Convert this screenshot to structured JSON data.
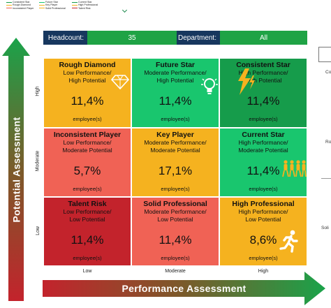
{
  "legend": [
    {
      "label": "Consistent Star",
      "color": "#169c4b"
    },
    {
      "label": "Rough Diamond",
      "color": "#f5b21f"
    },
    {
      "label": "Inconsistent Player",
      "color": "#f06255"
    },
    {
      "label": "Future Star",
      "color": "#19c66e"
    },
    {
      "label": "Key Player",
      "color": "#f5b21f"
    },
    {
      "label": "Solid Professional",
      "color": "#f5b21f"
    },
    {
      "label": "Current Star",
      "color": "#169c4b"
    },
    {
      "label": "High Professional",
      "color": "#f5b21f"
    },
    {
      "label": "Talent Risk",
      "color": "#c3232c"
    }
  ],
  "header": {
    "headcount_label": "Headcount:",
    "headcount_value": "35",
    "department_label": "Department:",
    "department_value": "All"
  },
  "axes": {
    "y_title": "Potential Assessment",
    "x_title": "Performance Assessment",
    "y_levels": [
      "High",
      "Moderate",
      "Low"
    ],
    "x_levels": [
      "Low",
      "Moderate",
      "High"
    ]
  },
  "cells": [
    {
      "title": "Rough Diamond",
      "sub1": "Low Performance/",
      "sub2": "High Potential",
      "pct": "11,4%",
      "unit": "employee(s)",
      "color": "#f5b21f",
      "icon": "diamond-icon"
    },
    {
      "title": "Future Star",
      "sub1": "Moderate Performance/",
      "sub2": "High Potential",
      "pct": "11,4%",
      "unit": "employee(s)",
      "color": "#19c66e",
      "icon": "lightbulb-icon"
    },
    {
      "title": "Consistent Star",
      "sub1": "High Performance/",
      "sub2": "High Potential",
      "pct": "11,4%",
      "unit": "employee(s)",
      "color": "#169c4b",
      "icon": "lightning-icon"
    },
    {
      "title": "Inconsistent Player",
      "sub1": "Low Performance/",
      "sub2": "Moderate Potential",
      "pct": "5,7%",
      "unit": "employee(s)",
      "color": "#f06255",
      "icon": ""
    },
    {
      "title": "Key Player",
      "sub1": "Moderate Performance/",
      "sub2": "Moderate Potential",
      "pct": "17,1%",
      "unit": "employee(s)",
      "color": "#f5b21f",
      "icon": ""
    },
    {
      "title": "Current Star",
      "sub1": "High Performance/",
      "sub2": "Moderate Potential",
      "pct": "11,4%",
      "unit": "employee(s)",
      "color": "#19c66e",
      "icon": "team-icon"
    },
    {
      "title": "Talent Risk",
      "sub1": "Low Performance/",
      "sub2": "Low Potential",
      "pct": "11,4%",
      "unit": "employee(s)",
      "color": "#c3232c",
      "icon": ""
    },
    {
      "title": "Solid Professional",
      "sub1": "Moderate Performance/",
      "sub2": "Low Potential",
      "pct": "11,4%",
      "unit": "employee(s)",
      "color": "#f06255",
      "icon": ""
    },
    {
      "title": "High Professional",
      "sub1": "High Performance/",
      "sub2": "Low Potential",
      "pct": "8,6%",
      "unit": "employee(s)",
      "color": "#f5b21f",
      "icon": "runner-icon"
    }
  ],
  "right_edge": [
    "Co",
    "Ro",
    "",
    "Soli"
  ]
}
